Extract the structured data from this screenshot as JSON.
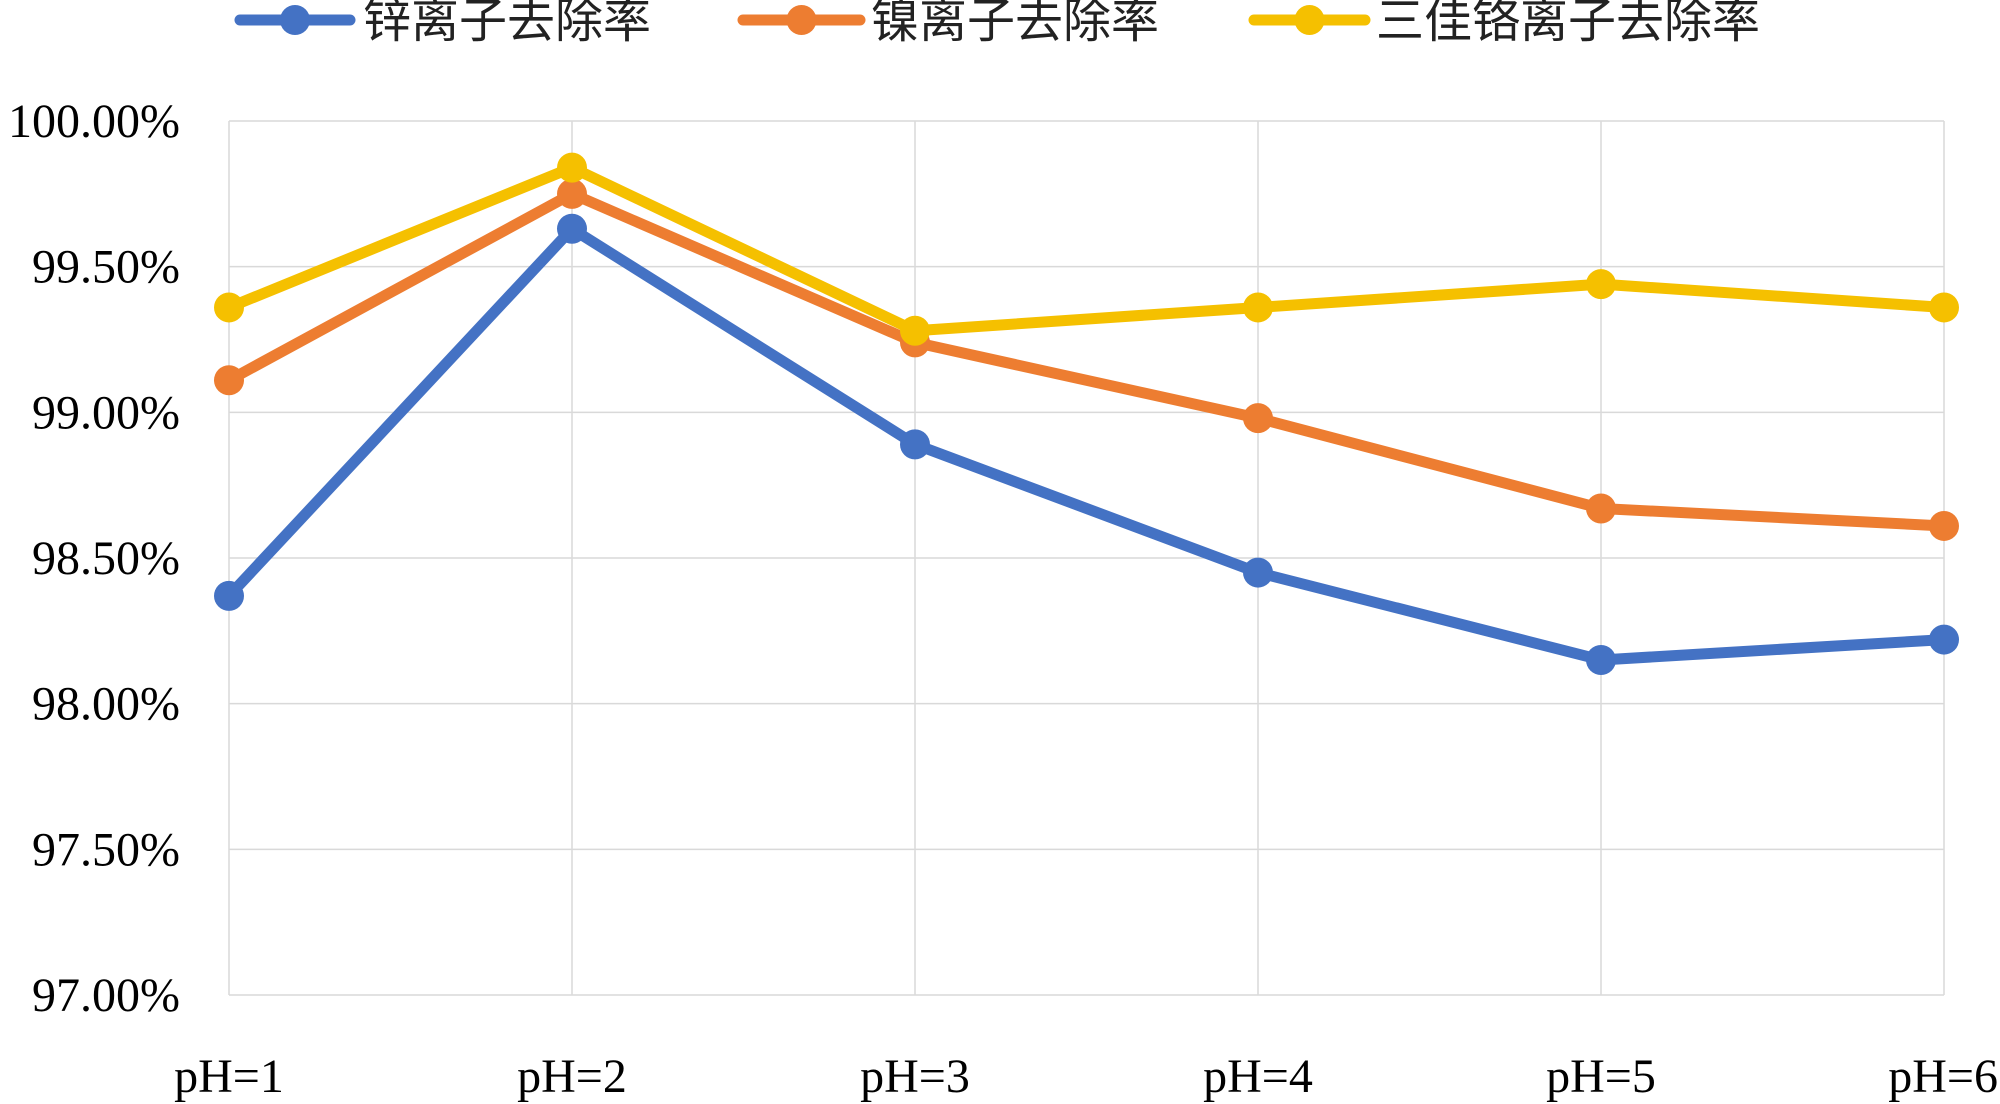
{
  "chart_data": {
    "type": "line",
    "title": "",
    "xlabel": "",
    "ylabel": "",
    "categories": [
      "pH=1",
      "pH=2",
      "pH=3",
      "pH=4",
      "pH=5",
      "pH=6"
    ],
    "ylim": [
      97.0,
      100.0
    ],
    "ytick_values": [
      97.0,
      97.5,
      98.0,
      98.5,
      99.0,
      99.5,
      100.0
    ],
    "ytick_labels": [
      "97.00%",
      "97.50%",
      "98.00%",
      "98.50%",
      "99.00%",
      "99.50%",
      "100.00%"
    ],
    "grid": true,
    "legend_position": "top",
    "series": [
      {
        "name": "锌离子去除率",
        "color": "#4472C4",
        "values": [
          98.37,
          99.63,
          98.89,
          98.45,
          98.15,
          98.22
        ]
      },
      {
        "name": "镍离子去除率",
        "color": "#ED7D31",
        "values": [
          99.11,
          99.75,
          99.24,
          98.98,
          98.67,
          98.61
        ]
      },
      {
        "name": "三佳铬离子去除率",
        "color": "#F5C000",
        "values": [
          99.36,
          99.84,
          99.28,
          99.36,
          99.44,
          99.36
        ]
      }
    ]
  }
}
